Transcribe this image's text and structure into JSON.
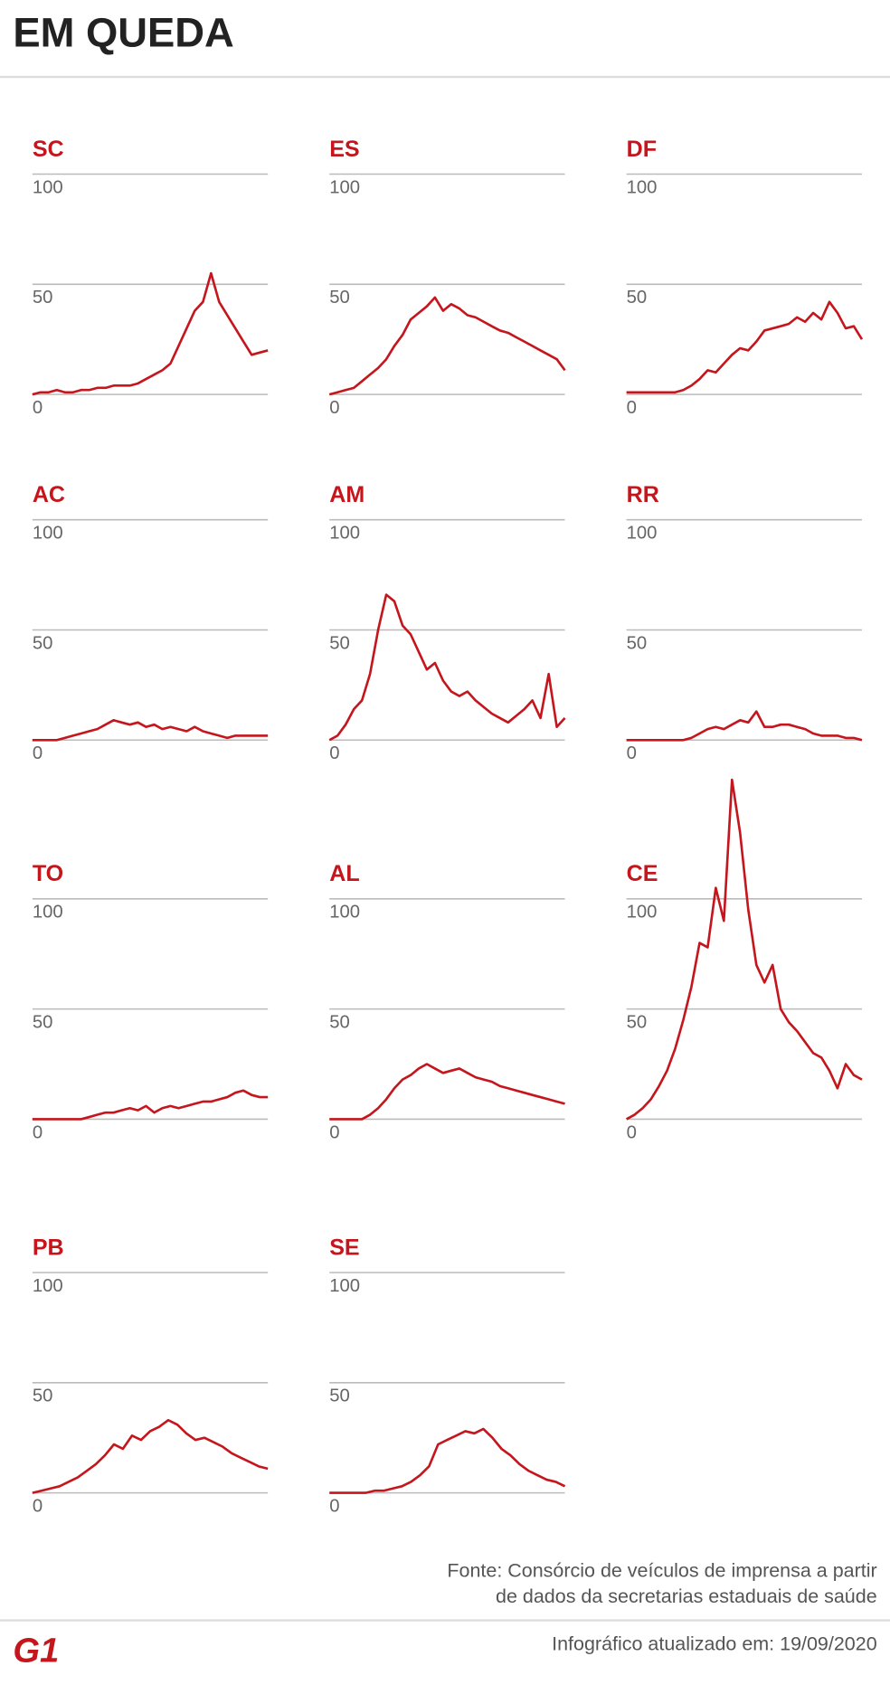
{
  "header": {
    "title": "EM QUEDA"
  },
  "chart_data": [
    {
      "type": "line",
      "title": "SC",
      "color": "#c4161c",
      "ylim": [
        0,
        100
      ],
      "yticks": [
        0,
        50,
        100
      ],
      "grid": true,
      "values": [
        0,
        1,
        1,
        2,
        1,
        1,
        2,
        2,
        3,
        3,
        4,
        4,
        4,
        5,
        7,
        9,
        11,
        14,
        22,
        30,
        38,
        42,
        55,
        42,
        36,
        30,
        24,
        18,
        19,
        20
      ]
    },
    {
      "type": "line",
      "title": "ES",
      "color": "#c4161c",
      "ylim": [
        0,
        100
      ],
      "yticks": [
        0,
        50,
        100
      ],
      "grid": true,
      "values": [
        0,
        1,
        2,
        3,
        6,
        9,
        12,
        16,
        22,
        27,
        34,
        37,
        40,
        44,
        38,
        41,
        39,
        36,
        35,
        33,
        31,
        29,
        28,
        26,
        24,
        22,
        20,
        18,
        16,
        11
      ]
    },
    {
      "type": "line",
      "title": "DF",
      "color": "#c4161c",
      "ylim": [
        0,
        100
      ],
      "yticks": [
        0,
        50,
        100
      ],
      "grid": true,
      "values": [
        1,
        1,
        1,
        1,
        1,
        1,
        1,
        2,
        4,
        7,
        11,
        10,
        14,
        18,
        21,
        20,
        24,
        29,
        30,
        31,
        32,
        35,
        33,
        37,
        34,
        42,
        37,
        30,
        31,
        25
      ]
    },
    {
      "type": "line",
      "title": "AC",
      "color": "#c4161c",
      "ylim": [
        0,
        100
      ],
      "yticks": [
        0,
        50,
        100
      ],
      "grid": true,
      "values": [
        0,
        0,
        0,
        0,
        1,
        2,
        3,
        4,
        5,
        7,
        9,
        8,
        7,
        8,
        6,
        7,
        5,
        6,
        5,
        4,
        6,
        4,
        3,
        2,
        1,
        2,
        2,
        2,
        2,
        2
      ]
    },
    {
      "type": "line",
      "title": "AM",
      "color": "#c4161c",
      "ylim": [
        0,
        100
      ],
      "yticks": [
        0,
        50,
        100
      ],
      "grid": true,
      "values": [
        0,
        2,
        7,
        14,
        18,
        30,
        50,
        66,
        63,
        52,
        48,
        40,
        32,
        35,
        27,
        22,
        20,
        22,
        18,
        15,
        12,
        10,
        8,
        11,
        14,
        18,
        10,
        30,
        6,
        10
      ]
    },
    {
      "type": "line",
      "title": "RR",
      "color": "#c4161c",
      "ylim": [
        0,
        100
      ],
      "yticks": [
        0,
        50,
        100
      ],
      "grid": true,
      "values": [
        0,
        0,
        0,
        0,
        0,
        0,
        0,
        0,
        1,
        3,
        5,
        6,
        5,
        7,
        9,
        8,
        13,
        6,
        6,
        7,
        7,
        6,
        5,
        3,
        2,
        2,
        2,
        1,
        1,
        0
      ]
    },
    {
      "type": "line",
      "title": "TO",
      "color": "#c4161c",
      "ylim": [
        0,
        100
      ],
      "yticks": [
        0,
        50,
        100
      ],
      "grid": true,
      "values": [
        0,
        0,
        0,
        0,
        0,
        0,
        0,
        1,
        2,
        3,
        3,
        4,
        5,
        4,
        6,
        3,
        5,
        6,
        5,
        6,
        7,
        8,
        8,
        9,
        10,
        12,
        13,
        11,
        10,
        10
      ]
    },
    {
      "type": "line",
      "title": "AL",
      "color": "#c4161c",
      "ylim": [
        0,
        100
      ],
      "yticks": [
        0,
        50,
        100
      ],
      "grid": true,
      "values": [
        0,
        0,
        0,
        0,
        0,
        2,
        5,
        9,
        14,
        18,
        20,
        23,
        25,
        23,
        21,
        22,
        23,
        21,
        19,
        18,
        17,
        15,
        14,
        13,
        12,
        11,
        10,
        9,
        8,
        7
      ]
    },
    {
      "type": "line",
      "title": "CE",
      "color": "#c4161c",
      "ylim": [
        0,
        100
      ],
      "yticks": [
        0,
        50,
        100
      ],
      "grid": true,
      "values": [
        0,
        2,
        5,
        9,
        15,
        22,
        32,
        45,
        60,
        80,
        78,
        105,
        90,
        154,
        130,
        95,
        70,
        62,
        70,
        50,
        44,
        40,
        35,
        30,
        28,
        22,
        14,
        25,
        20,
        18
      ]
    },
    {
      "type": "line",
      "title": "PB",
      "color": "#c4161c",
      "ylim": [
        0,
        100
      ],
      "yticks": [
        0,
        50,
        100
      ],
      "grid": true,
      "values": [
        0,
        1,
        2,
        3,
        5,
        7,
        10,
        13,
        17,
        22,
        20,
        26,
        24,
        28,
        30,
        33,
        31,
        27,
        24,
        25,
        23,
        21,
        18,
        16,
        14,
        12,
        11
      ]
    },
    {
      "type": "line",
      "title": "SE",
      "color": "#c4161c",
      "ylim": [
        0,
        100
      ],
      "yticks": [
        0,
        50,
        100
      ],
      "grid": true,
      "values": [
        0,
        0,
        0,
        0,
        0,
        1,
        1,
        2,
        3,
        5,
        8,
        12,
        22,
        24,
        26,
        28,
        27,
        29,
        25,
        20,
        17,
        13,
        10,
        8,
        6,
        5,
        3
      ]
    }
  ],
  "footer": {
    "source": [
      "Fonte: Consórcio de veículos de imprensa a partir",
      "de dados da secretarias estaduais de saúde"
    ],
    "updated": "Infográfico atualizado em: 19/09/2020",
    "logo": "G1"
  }
}
